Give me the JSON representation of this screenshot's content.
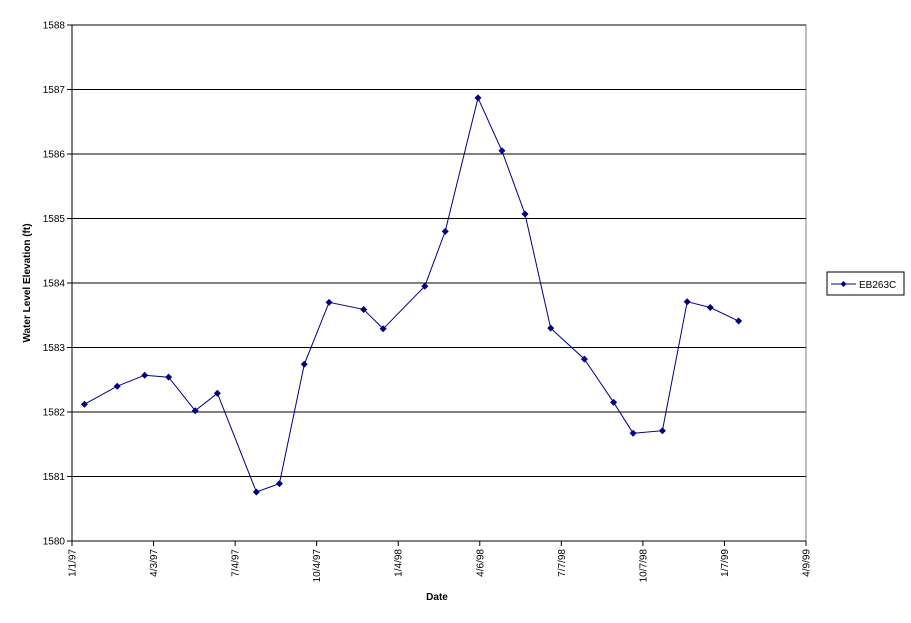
{
  "chart_data": {
    "type": "line",
    "title": "",
    "xlabel": "Date",
    "ylabel": "Water Level Elevation (ft)",
    "ylim": [
      1580,
      1588
    ],
    "xlim": [
      "1997-01-01",
      "1999-04-09"
    ],
    "y_ticks": [
      "1580",
      "1581",
      "1582",
      "1583",
      "1584",
      "1585",
      "1586",
      "1587",
      "1588"
    ],
    "x_ticks": [
      {
        "label": "1/1/97",
        "date": "1997-01-01"
      },
      {
        "label": "4/3/97",
        "date": "1997-04-03"
      },
      {
        "label": "7/4/97",
        "date": "1997-07-04"
      },
      {
        "label": "10/4/97",
        "date": "1997-10-04"
      },
      {
        "label": "1/4/98",
        "date": "1998-01-04"
      },
      {
        "label": "4/6/98",
        "date": "1998-04-06"
      },
      {
        "label": "7/7/98",
        "date": "1998-07-07"
      },
      {
        "label": "10/7/98",
        "date": "1998-10-07"
      },
      {
        "label": "1/7/99",
        "date": "1999-01-07"
      },
      {
        "label": "4/9/99",
        "date": "1999-04-09"
      }
    ],
    "grid": "horizontal",
    "legend_position": "right",
    "series": [
      {
        "name": "EB263C",
        "color": "#000080",
        "marker": "diamond",
        "points": [
          {
            "x": "1997-01-15",
            "y": 1582.12
          },
          {
            "x": "1997-02-21",
            "y": 1582.4
          },
          {
            "x": "1997-03-24",
            "y": 1582.57
          },
          {
            "x": "1997-04-20",
            "y": 1582.54
          },
          {
            "x": "1997-05-20",
            "y": 1582.02
          },
          {
            "x": "1997-06-14",
            "y": 1582.29
          },
          {
            "x": "1997-07-28",
            "y": 1580.76
          },
          {
            "x": "1997-08-23",
            "y": 1580.89
          },
          {
            "x": "1997-09-20",
            "y": 1582.74
          },
          {
            "x": "1997-10-18",
            "y": 1583.7
          },
          {
            "x": "1997-11-26",
            "y": 1583.59
          },
          {
            "x": "1997-12-18",
            "y": 1583.29
          },
          {
            "x": "1998-02-03",
            "y": 1583.95
          },
          {
            "x": "1998-02-26",
            "y": 1584.8
          },
          {
            "x": "1998-04-04",
            "y": 1586.87
          },
          {
            "x": "1998-05-01",
            "y": 1586.05
          },
          {
            "x": "1998-05-27",
            "y": 1585.07
          },
          {
            "x": "1998-06-25",
            "y": 1583.3
          },
          {
            "x": "1998-08-02",
            "y": 1582.82
          },
          {
            "x": "1998-09-04",
            "y": 1582.15
          },
          {
            "x": "1998-09-26",
            "y": 1581.67
          },
          {
            "x": "1998-10-29",
            "y": 1581.71
          },
          {
            "x": "1998-11-26",
            "y": 1583.71
          },
          {
            "x": "1998-12-22",
            "y": 1583.62
          },
          {
            "x": "1999-01-23",
            "y": 1583.41
          }
        ]
      }
    ]
  }
}
